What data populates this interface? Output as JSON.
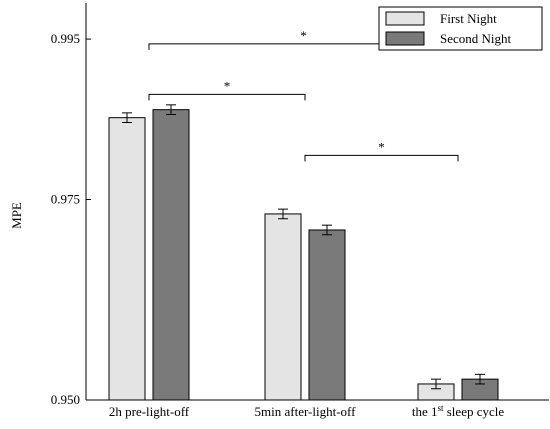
{
  "chart_data": {
    "type": "bar",
    "ylabel": "MPE",
    "ylim": [
      0.95,
      0.9995
    ],
    "yticks": [
      "0.950",
      "0.975",
      "0.995"
    ],
    "categories": [
      {
        "text": "2h pre-light-off",
        "parts": [
          "2h pre-light-off"
        ]
      },
      {
        "text": "5min after-light-off",
        "parts": [
          "5min after-light-off"
        ]
      },
      {
        "text": "the 1st sleep cycle",
        "parts": [
          "the 1",
          "st",
          " sleep cycle"
        ]
      }
    ],
    "series": [
      {
        "name": "First Night",
        "color": "#e4e4e4",
        "values": [
          0.9852,
          0.9732,
          0.952
        ],
        "errors": [
          0.0006,
          0.0006,
          0.0006
        ]
      },
      {
        "name": "Second Night",
        "color": "#7a7a7a",
        "values": [
          0.9862,
          0.9712,
          0.9526
        ],
        "errors": [
          0.0006,
          0.0006,
          0.0006
        ]
      }
    ],
    "legend": "top-right",
    "significance": [
      {
        "from": 0,
        "to": 2,
        "level": 0.9944,
        "label": "*"
      },
      {
        "from": 0,
        "to": 1,
        "level": 0.9881,
        "label": "*"
      },
      {
        "from": 1,
        "to": 2,
        "level": 0.9805,
        "label": "*"
      }
    ]
  }
}
